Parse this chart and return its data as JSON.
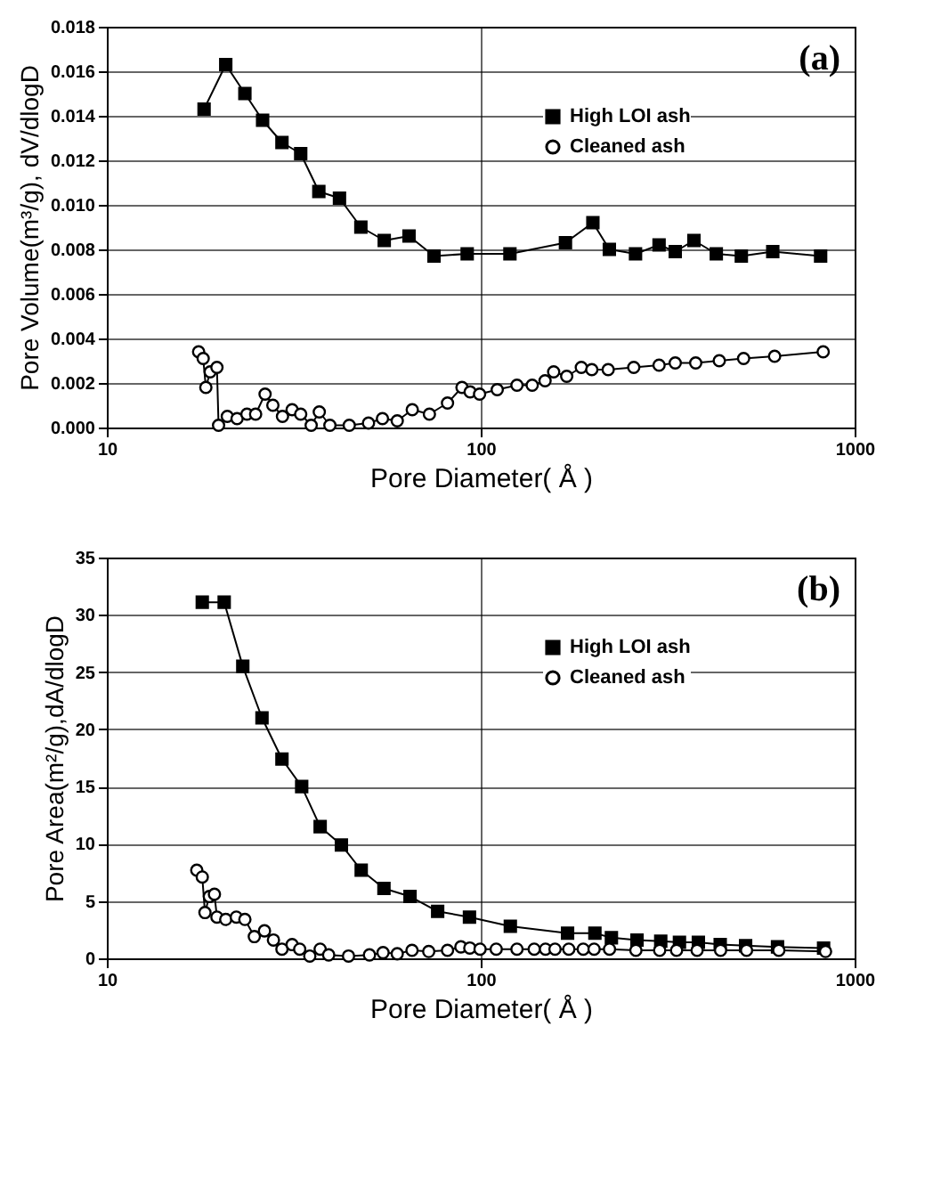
{
  "chart_data": [
    {
      "type": "line",
      "annotations": [
        "(a)"
      ],
      "xlabel": "Pore Diameter( Å )",
      "ylabel": "Pore Volume(m³/g), dV/dlogD",
      "log": "x",
      "grid": true,
      "legend": "top right",
      "xlim": [
        10,
        1000
      ],
      "xticks": [
        10,
        100,
        1000
      ],
      "ylim": [
        0,
        0.018
      ],
      "yticks": [
        {
          "value": 0,
          "label": "0.000"
        },
        {
          "value": 0.002,
          "label": "0.002"
        },
        {
          "value": 0.004,
          "label": "0.004"
        },
        {
          "value": 0.006,
          "label": "0.006"
        },
        {
          "value": 0.008,
          "label": "0.008"
        },
        {
          "value": 0.01,
          "label": "0.010"
        },
        {
          "value": 0.012,
          "label": "0.012"
        },
        {
          "value": 0.014,
          "label": "0.014"
        },
        {
          "value": 0.016,
          "label": "0.016"
        },
        {
          "value": 0.018,
          "label": "0.018"
        }
      ],
      "series": [
        {
          "name": "High LOI ash",
          "color": "#000000",
          "marker": "square",
          "x": [
            18.2,
            20.8,
            23.4,
            26.1,
            29.4,
            33.0,
            36.9,
            41.9,
            47.8,
            55.2,
            64.3,
            75.0,
            92.0,
            119.7,
            168.5,
            199.5,
            220.8,
            259.4,
            299.9,
            331.3,
            371.7,
            426.6,
            497.7,
            604,
            811
          ],
          "values": [
            0.0143,
            0.0163,
            0.015,
            0.0138,
            0.0128,
            0.0123,
            0.0106,
            0.0103,
            0.009,
            0.0084,
            0.0086,
            0.0077,
            0.0078,
            0.0078,
            0.0083,
            0.0092,
            0.008,
            0.0078,
            0.0082,
            0.0079,
            0.0084,
            0.0078,
            0.0077,
            0.0079,
            0.0077
          ]
        },
        {
          "name": "Cleaned ash",
          "color": "#000000",
          "marker": "circle",
          "x": [
            17.6,
            18.1,
            18.4,
            18.9,
            19.7,
            19.9,
            21.0,
            22.3,
            23.7,
            25.0,
            26.5,
            27.8,
            29.5,
            31.3,
            33.0,
            35.2,
            37.0,
            39.5,
            44.5,
            50.1,
            54.6,
            59.8,
            65.6,
            72.9,
            81.5,
            89.1,
            93.7,
            99.3,
            110.7,
            125.0,
            137.3,
            148.6,
            156.7,
            169.8,
            185.8,
            198.2,
            219.2,
            256.6,
            299.9,
            331.3,
            375.8,
            434.5,
            504.7,
            610.9,
            824
          ],
          "values": [
            0.0034,
            0.0031,
            0.0018,
            0.0025,
            0.0027,
            0.0001,
            0.0005,
            0.0004,
            0.0006,
            0.0006,
            0.0015,
            0.001,
            0.0005,
            0.0008,
            0.0006,
            0.0001,
            0.0007,
            0.0001,
            0.0001,
            0.0002,
            0.0004,
            0.0003,
            0.0008,
            0.0006,
            0.0011,
            0.0018,
            0.0016,
            0.0015,
            0.0017,
            0.0019,
            0.0019,
            0.0021,
            0.0025,
            0.0023,
            0.0027,
            0.0026,
            0.0026,
            0.0027,
            0.0028,
            0.0029,
            0.0029,
            0.003,
            0.0031,
            0.0032,
            0.0034
          ]
        }
      ]
    },
    {
      "type": "line",
      "annotations": [
        "(b)"
      ],
      "xlabel": "Pore Diameter( Å )",
      "ylabel": "Pore Area(m²/g),dA/dlogD",
      "log": "x",
      "grid": true,
      "legend": "top right",
      "xlim": [
        10,
        1000
      ],
      "xticks": [
        10,
        100,
        1000
      ],
      "ylim": [
        0,
        35
      ],
      "yticks": [
        0,
        5,
        10,
        15,
        20,
        25,
        30,
        35
      ],
      "series": [
        {
          "name": "High LOI ash",
          "color": "#000000",
          "marker": "square",
          "x": [
            18.0,
            20.6,
            23.1,
            26.0,
            29.4,
            33.2,
            37.2,
            42.4,
            47.9,
            55.1,
            64.7,
            76.7,
            93.3,
            120,
            170.7,
            202,
            223.6,
            261.8,
            303,
            340,
            382,
            437,
            511,
            622,
            826
          ],
          "values": [
            31.1,
            31.1,
            25.5,
            21.0,
            17.4,
            15.0,
            11.5,
            9.9,
            7.7,
            6.1,
            5.4,
            4.1,
            3.6,
            2.8,
            2.2,
            2.2,
            1.8,
            1.6,
            1.5,
            1.4,
            1.4,
            1.2,
            1.1,
            1.0,
            0.9
          ]
        },
        {
          "name": "Cleaned ash",
          "color": "#000000",
          "marker": "circle",
          "x": [
            17.4,
            18.0,
            18.3,
            18.8,
            19.4,
            19.7,
            20.8,
            22.2,
            23.4,
            24.8,
            26.4,
            27.9,
            29.4,
            31.3,
            32.8,
            34.9,
            37.2,
            39.2,
            44.3,
            50.4,
            54.8,
            59.8,
            65.5,
            72.6,
            81.5,
            88.5,
            93.5,
            99.6,
            110,
            125,
            139,
            149,
            158,
            172,
            188,
            201,
            221,
            260,
            301,
            334,
            379,
            438,
            514,
            627,
            836
          ],
          "values": [
            7.7,
            7.1,
            4.0,
            5.4,
            5.6,
            3.6,
            3.4,
            3.6,
            3.4,
            1.9,
            2.4,
            1.6,
            0.8,
            1.2,
            0.8,
            0.2,
            0.8,
            0.3,
            0.2,
            0.3,
            0.5,
            0.4,
            0.7,
            0.6,
            0.7,
            1.0,
            0.9,
            0.8,
            0.8,
            0.8,
            0.8,
            0.8,
            0.8,
            0.8,
            0.8,
            0.8,
            0.8,
            0.7,
            0.7,
            0.7,
            0.7,
            0.7,
            0.7,
            0.7,
            0.6
          ]
        }
      ]
    }
  ]
}
